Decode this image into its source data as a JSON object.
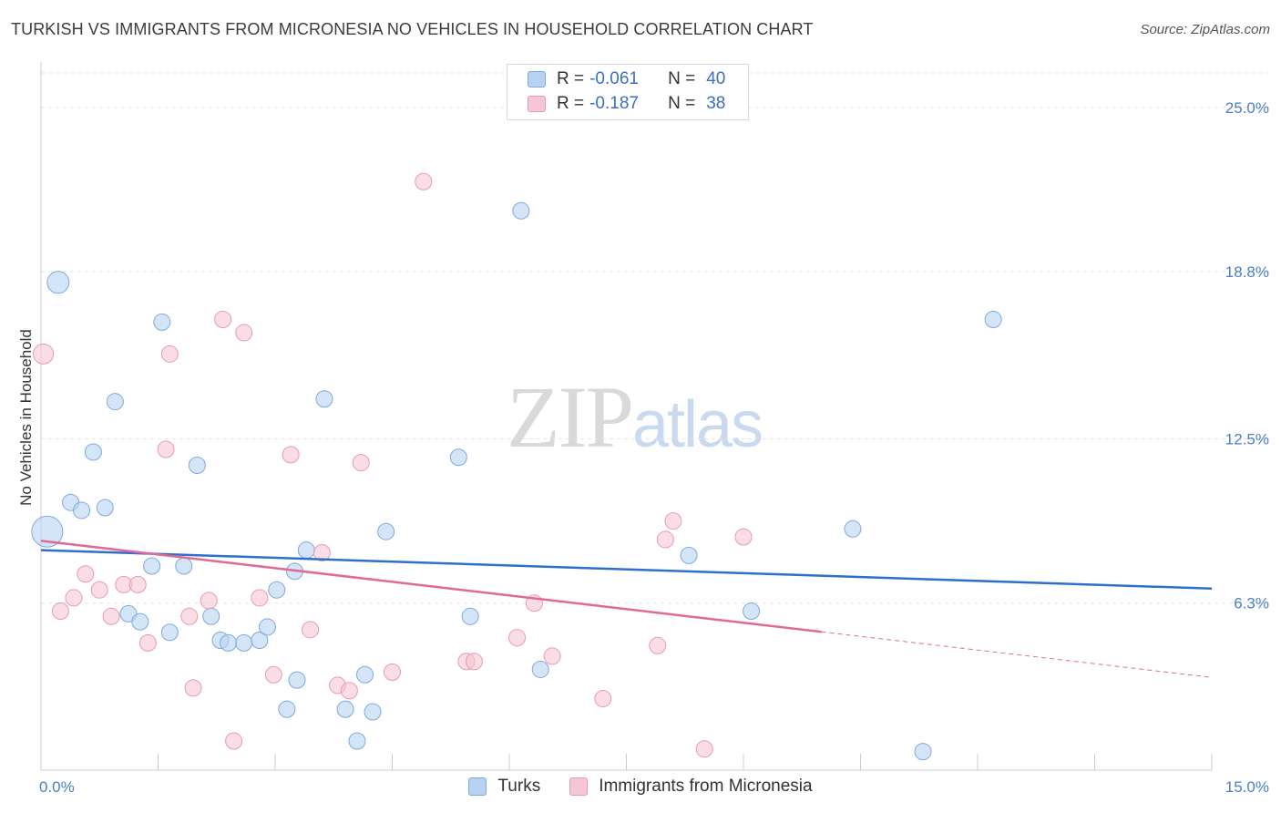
{
  "title": "TURKISH VS IMMIGRANTS FROM MICRONESIA NO VEHICLES IN HOUSEHOLD CORRELATION CHART",
  "source": "Source: ZipAtlas.com",
  "watermark": {
    "zip": "ZIP",
    "atlas": "atlas"
  },
  "legend": {
    "r_label": "R =",
    "n_label": "N =",
    "rows": [
      {
        "r": "-0.061",
        "n": "40"
      },
      {
        "r": "-0.187",
        "n": "38"
      }
    ]
  },
  "bottom_legend": [
    "Turks",
    "Immigrants from Micronesia"
  ],
  "colors": {
    "blue_fill": "#b8d3f2",
    "blue_stroke": "#7fa9dc",
    "blue_line": "#2f6fcc",
    "pink_fill": "#f7c6d4",
    "pink_stroke": "#e89ab2",
    "pink_line": "#e06a95",
    "axis_text": "#4a7ec9"
  },
  "chart_data": {
    "type": "scatter",
    "title": "TURKISH VS IMMIGRANTS FROM MICRONESIA NO VEHICLES IN HOUSEHOLD CORRELATION CHART",
    "xlabel": "",
    "ylabel": "No Vehicles in Household",
    "xlim": [
      0,
      15
    ],
    "ylim": [
      0,
      26.3
    ],
    "x_tick_labels": [
      {
        "value": 0,
        "label": "0.0%"
      },
      {
        "value": 15,
        "label": "15.0%"
      }
    ],
    "y_ticks": [
      {
        "value": 6.3,
        "label": "6.3%"
      },
      {
        "value": 12.5,
        "label": "12.5%"
      },
      {
        "value": 18.8,
        "label": "18.8%"
      },
      {
        "value": 25.0,
        "label": "25.0%"
      }
    ],
    "x_minor_ticks": [
      1.5,
      3.0,
      4.5,
      6.0,
      7.5,
      9.0,
      10.5,
      12.0,
      13.5
    ],
    "series": [
      {
        "name": "Turks",
        "color": "#b8d3f2",
        "R": -0.061,
        "N": 40,
        "trend": {
          "x0": 0,
          "y0": 8.3,
          "x1": 15,
          "y1": 6.85,
          "dashed_from": null
        },
        "points": [
          {
            "x": 0.22,
            "y": 18.4,
            "s": 12
          },
          {
            "x": 0.08,
            "y": 9.0,
            "s": 17
          },
          {
            "x": 1.55,
            "y": 16.9,
            "s": 9
          },
          {
            "x": 0.95,
            "y": 13.9,
            "s": 9
          },
          {
            "x": 0.67,
            "y": 12.0,
            "s": 9
          },
          {
            "x": 2.0,
            "y": 11.5,
            "s": 9
          },
          {
            "x": 0.38,
            "y": 10.1,
            "s": 9
          },
          {
            "x": 0.52,
            "y": 9.8,
            "s": 9
          },
          {
            "x": 0.82,
            "y": 9.9,
            "s": 9
          },
          {
            "x": 1.42,
            "y": 7.7,
            "s": 9
          },
          {
            "x": 1.83,
            "y": 7.7,
            "s": 9
          },
          {
            "x": 1.12,
            "y": 5.9,
            "s": 9
          },
          {
            "x": 1.27,
            "y": 5.6,
            "s": 9
          },
          {
            "x": 1.65,
            "y": 5.2,
            "s": 9
          },
          {
            "x": 2.18,
            "y": 5.8,
            "s": 9
          },
          {
            "x": 2.3,
            "y": 4.9,
            "s": 9
          },
          {
            "x": 2.4,
            "y": 4.8,
            "s": 9
          },
          {
            "x": 2.6,
            "y": 4.8,
            "s": 9
          },
          {
            "x": 2.8,
            "y": 4.9,
            "s": 9
          },
          {
            "x": 2.9,
            "y": 5.4,
            "s": 9
          },
          {
            "x": 3.02,
            "y": 6.8,
            "s": 9
          },
          {
            "x": 3.25,
            "y": 7.5,
            "s": 9
          },
          {
            "x": 3.4,
            "y": 8.3,
            "s": 9
          },
          {
            "x": 3.63,
            "y": 14.0,
            "s": 9
          },
          {
            "x": 3.15,
            "y": 2.3,
            "s": 9
          },
          {
            "x": 3.28,
            "y": 3.4,
            "s": 9
          },
          {
            "x": 3.9,
            "y": 2.3,
            "s": 9
          },
          {
            "x": 4.15,
            "y": 3.6,
            "s": 9
          },
          {
            "x": 4.25,
            "y": 2.2,
            "s": 9
          },
          {
            "x": 4.05,
            "y": 1.1,
            "s": 9
          },
          {
            "x": 4.42,
            "y": 9.0,
            "s": 9
          },
          {
            "x": 5.35,
            "y": 11.8,
            "s": 9
          },
          {
            "x": 5.5,
            "y": 5.8,
            "s": 9
          },
          {
            "x": 6.15,
            "y": 21.1,
            "s": 9
          },
          {
            "x": 6.4,
            "y": 3.8,
            "s": 9
          },
          {
            "x": 8.3,
            "y": 8.1,
            "s": 9
          },
          {
            "x": 9.1,
            "y": 6.0,
            "s": 9
          },
          {
            "x": 10.4,
            "y": 9.1,
            "s": 9
          },
          {
            "x": 11.3,
            "y": 0.7,
            "s": 9
          },
          {
            "x": 12.2,
            "y": 17.0,
            "s": 9
          }
        ]
      },
      {
        "name": "Immigrants from Micronesia",
        "color": "#f7c6d4",
        "R": -0.187,
        "N": 38,
        "trend": {
          "x0": 0,
          "y0": 8.65,
          "x1": 15,
          "y1": 3.5,
          "dashed_from": 10.0
        },
        "points": [
          {
            "x": 0.03,
            "y": 15.7,
            "s": 11
          },
          {
            "x": 0.25,
            "y": 6.0,
            "s": 9
          },
          {
            "x": 0.42,
            "y": 6.5,
            "s": 9
          },
          {
            "x": 0.57,
            "y": 7.4,
            "s": 9
          },
          {
            "x": 0.75,
            "y": 6.8,
            "s": 9
          },
          {
            "x": 0.9,
            "y": 5.8,
            "s": 9
          },
          {
            "x": 1.06,
            "y": 7.0,
            "s": 9
          },
          {
            "x": 1.24,
            "y": 7.0,
            "s": 9
          },
          {
            "x": 1.37,
            "y": 4.8,
            "s": 9
          },
          {
            "x": 1.6,
            "y": 12.1,
            "s": 9
          },
          {
            "x": 1.65,
            "y": 15.7,
            "s": 9
          },
          {
            "x": 1.9,
            "y": 5.8,
            "s": 9
          },
          {
            "x": 1.95,
            "y": 3.1,
            "s": 9
          },
          {
            "x": 2.15,
            "y": 6.4,
            "s": 9
          },
          {
            "x": 2.33,
            "y": 17.0,
            "s": 9
          },
          {
            "x": 2.47,
            "y": 1.1,
            "s": 9
          },
          {
            "x": 2.6,
            "y": 16.5,
            "s": 9
          },
          {
            "x": 2.8,
            "y": 6.5,
            "s": 9
          },
          {
            "x": 2.98,
            "y": 3.6,
            "s": 9
          },
          {
            "x": 3.2,
            "y": 11.9,
            "s": 9
          },
          {
            "x": 3.45,
            "y": 5.3,
            "s": 9
          },
          {
            "x": 3.6,
            "y": 8.2,
            "s": 9
          },
          {
            "x": 3.8,
            "y": 3.2,
            "s": 9
          },
          {
            "x": 3.95,
            "y": 3.0,
            "s": 9
          },
          {
            "x": 4.1,
            "y": 11.6,
            "s": 9
          },
          {
            "x": 4.5,
            "y": 3.7,
            "s": 9
          },
          {
            "x": 4.9,
            "y": 22.2,
            "s": 9
          },
          {
            "x": 5.45,
            "y": 4.1,
            "s": 9
          },
          {
            "x": 5.55,
            "y": 4.1,
            "s": 9
          },
          {
            "x": 6.1,
            "y": 5.0,
            "s": 9
          },
          {
            "x": 6.32,
            "y": 6.3,
            "s": 9
          },
          {
            "x": 6.55,
            "y": 4.3,
            "s": 9
          },
          {
            "x": 7.2,
            "y": 2.7,
            "s": 9
          },
          {
            "x": 7.9,
            "y": 4.7,
            "s": 9
          },
          {
            "x": 8.0,
            "y": 8.7,
            "s": 9
          },
          {
            "x": 8.1,
            "y": 9.4,
            "s": 9
          },
          {
            "x": 8.5,
            "y": 0.8,
            "s": 9
          },
          {
            "x": 9.0,
            "y": 8.8,
            "s": 9
          }
        ]
      }
    ]
  }
}
